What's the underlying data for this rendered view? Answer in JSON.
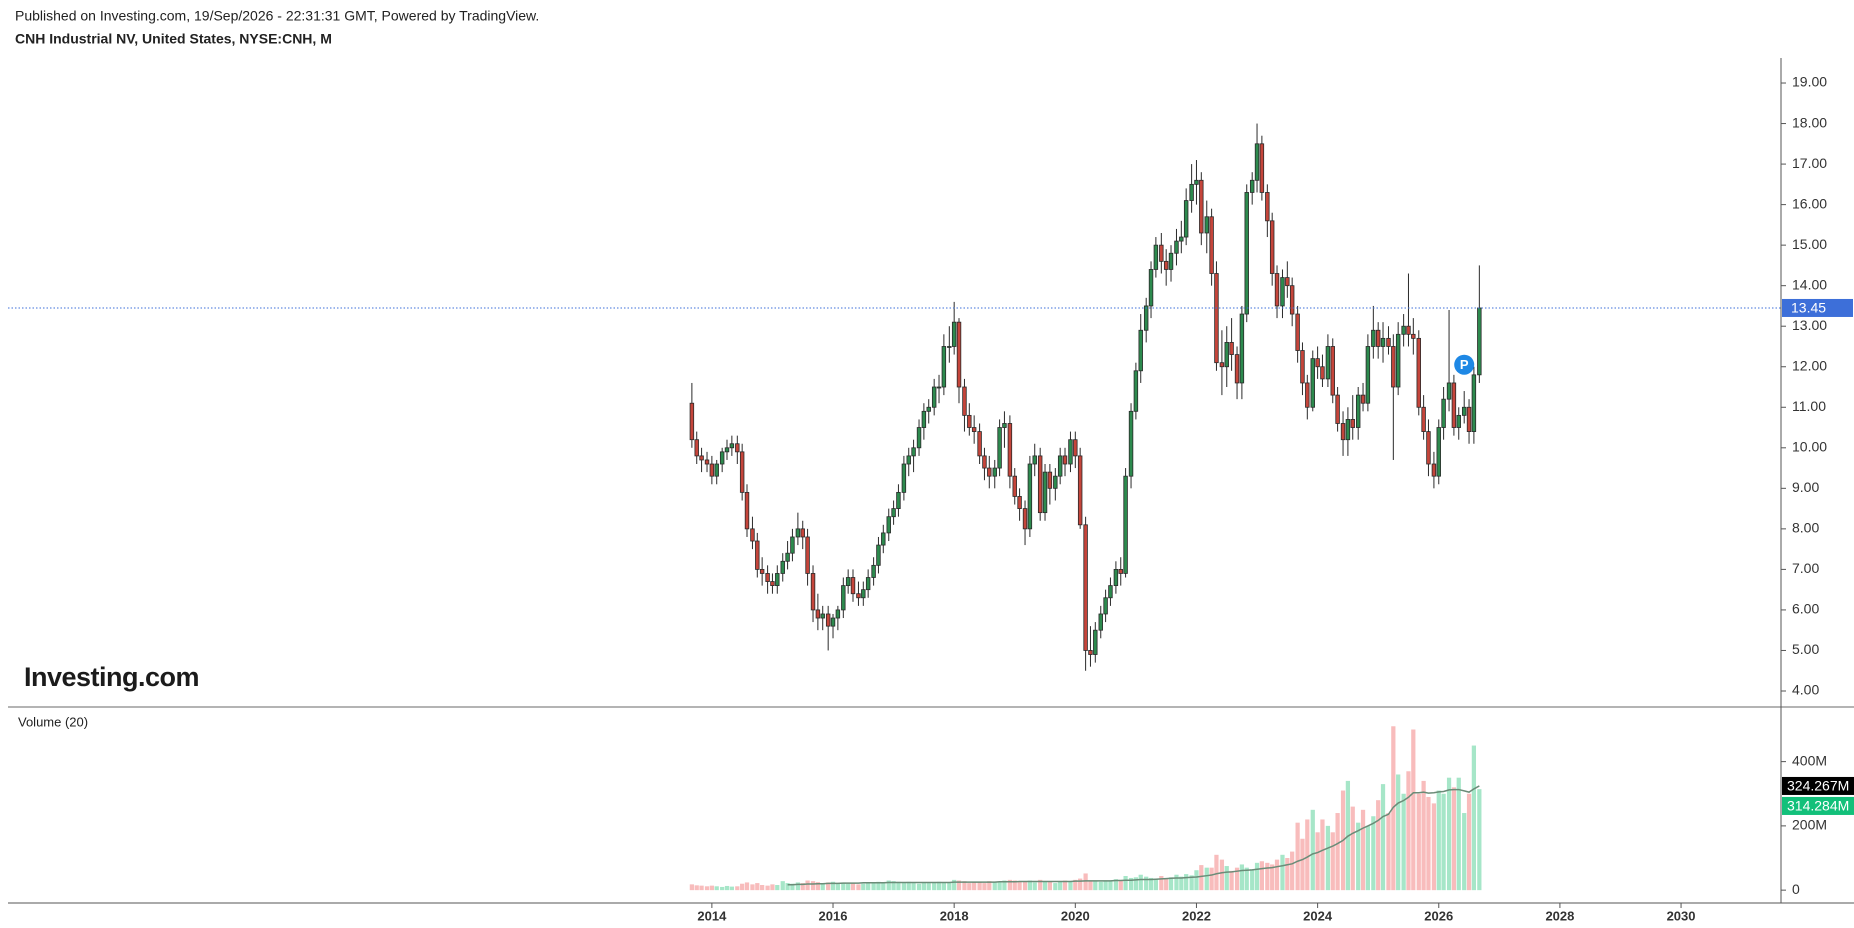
{
  "source": "Published on Investing.com, 19/Sep/2026 - 22:31:31 GMT, Powered by TradingView.",
  "logo": "Investing.com",
  "chart_data": {
    "type": "candlestick",
    "title": "CNH Industrial NV, United States, NYSE:CNH, M",
    "up_color": "#2d8a4e",
    "down_color": "#c5453b",
    "last_price_color": "#3d6fd9",
    "x": [
      2013.67,
      2013.75,
      2013.83,
      2013.92,
      2014,
      2014.08,
      2014.17,
      2014.25,
      2014.33,
      2014.42,
      2014.5,
      2014.58,
      2014.67,
      2014.75,
      2014.83,
      2014.92,
      2015,
      2015.08,
      2015.17,
      2015.25,
      2015.33,
      2015.42,
      2015.5,
      2015.58,
      2015.67,
      2015.75,
      2015.83,
      2015.92,
      2016,
      2016.08,
      2016.17,
      2016.25,
      2016.33,
      2016.42,
      2016.5,
      2016.58,
      2016.67,
      2016.75,
      2016.83,
      2016.92,
      2017,
      2017.08,
      2017.17,
      2017.25,
      2017.33,
      2017.42,
      2017.5,
      2017.58,
      2017.67,
      2017.75,
      2017.83,
      2017.92,
      2018,
      2018.08,
      2018.17,
      2018.25,
      2018.33,
      2018.42,
      2018.5,
      2018.58,
      2018.67,
      2018.75,
      2018.83,
      2018.92,
      2019,
      2019.08,
      2019.17,
      2019.25,
      2019.33,
      2019.42,
      2019.5,
      2019.58,
      2019.67,
      2019.75,
      2019.83,
      2019.92,
      2020,
      2020.08,
      2020.17,
      2020.25,
      2020.33,
      2020.42,
      2020.5,
      2020.58,
      2020.67,
      2020.75,
      2020.83,
      2020.92,
      2021,
      2021.08,
      2021.17,
      2021.25,
      2021.33,
      2021.42,
      2021.5,
      2021.58,
      2021.67,
      2021.75,
      2021.83,
      2021.92,
      2022,
      2022.08,
      2022.17,
      2022.25,
      2022.33,
      2022.42,
      2022.5,
      2022.58,
      2022.67,
      2022.75,
      2022.83,
      2022.92,
      2023,
      2023.08,
      2023.17,
      2023.25,
      2023.33,
      2023.42,
      2023.5,
      2023.58,
      2023.67,
      2023.75,
      2023.83,
      2023.92,
      2024,
      2024.08,
      2024.17,
      2024.25,
      2024.33,
      2024.42,
      2024.5,
      2024.58,
      2024.67,
      2024.75,
      2024.83,
      2024.92,
      2025,
      2025.08,
      2025.17,
      2025.25,
      2025.33,
      2025.42,
      2025.5,
      2025.58,
      2025.67,
      2025.75,
      2025.83,
      2025.92,
      2026,
      2026.08,
      2026.17,
      2026.25,
      2026.33,
      2026.42,
      2026.5,
      2026.58,
      2026.67
    ],
    "open": [
      11.1,
      10.2,
      9.8,
      9.7,
      9.6,
      9.3,
      9.6,
      9.9,
      10.0,
      10.1,
      9.9,
      8.9,
      8.0,
      7.7,
      7.0,
      6.9,
      6.7,
      6.6,
      6.9,
      7.2,
      7.4,
      7.8,
      8.0,
      7.8,
      6.9,
      6.0,
      5.8,
      5.9,
      5.6,
      5.8,
      6.0,
      6.6,
      6.8,
      6.4,
      6.3,
      6.5,
      6.8,
      7.1,
      7.6,
      7.9,
      8.3,
      8.5,
      8.9,
      9.6,
      9.8,
      10.0,
      10.5,
      10.9,
      11.0,
      11.5,
      11.5,
      12.5,
      12.5,
      13.1,
      11.5,
      10.8,
      10.5,
      10.4,
      9.8,
      9.5,
      9.3,
      9.5,
      10.5,
      10.6,
      9.3,
      8.8,
      8.5,
      8.0,
      9.6,
      9.8,
      8.4,
      9.4,
      9.0,
      9.3,
      9.8,
      9.6,
      10.2,
      9.8,
      8.1,
      5.0,
      4.9,
      5.5,
      5.9,
      6.3,
      6.6,
      7.0,
      6.9,
      9.3,
      10.9,
      11.9,
      12.9,
      13.5,
      14.4,
      15.0,
      14.6,
      14.4,
      14.8,
      15.1,
      15.2,
      16.1,
      16.5,
      16.6,
      15.3,
      15.7,
      14.3,
      12.1,
      12.0,
      12.6,
      12.3,
      11.6,
      13.3,
      16.3,
      16.6,
      17.5,
      16.3,
      15.6,
      14.3,
      13.5,
      14.2,
      14.0,
      13.3,
      12.4,
      11.6,
      11.0,
      12.2,
      12.0,
      11.7,
      12.5,
      11.3,
      10.6,
      10.2,
      10.7,
      10.5,
      11.3,
      11.1,
      12.5,
      12.9,
      12.5,
      12.7,
      12.5,
      11.5,
      12.8,
      13.0,
      12.8,
      12.7,
      11.0,
      10.4,
      9.6,
      9.3,
      10.5,
      11.2,
      11.6,
      10.5,
      10.8,
      11.0,
      10.4,
      11.8
    ],
    "high": [
      11.6,
      10.4,
      10.0,
      9.9,
      9.8,
      9.7,
      10.0,
      10.2,
      10.3,
      10.3,
      10.1,
      9.1,
      8.3,
      7.9,
      7.3,
      7.1,
      6.9,
      7.1,
      7.4,
      7.7,
      8.0,
      8.4,
      8.2,
      8.0,
      7.1,
      6.4,
      6.1,
      6.1,
      5.9,
      6.1,
      6.8,
      7.0,
      7.0,
      6.7,
      6.7,
      7.0,
      7.3,
      7.8,
      8.1,
      8.5,
      8.7,
      9.1,
      9.8,
      10.0,
      10.2,
      10.7,
      11.1,
      11.2,
      11.7,
      11.8,
      12.8,
      13.0,
      13.6,
      13.2,
      11.7,
      11.1,
      10.8,
      10.6,
      10.0,
      9.8,
      9.7,
      10.7,
      10.9,
      10.8,
      9.5,
      9.0,
      8.7,
      9.8,
      10.1,
      10.0,
      9.6,
      9.6,
      9.5,
      10.0,
      10.0,
      10.4,
      10.4,
      10.0,
      8.3,
      5.6,
      5.7,
      6.1,
      6.5,
      6.8,
      7.2,
      7.3,
      9.5,
      11.1,
      12.1,
      13.3,
      13.7,
      14.6,
      15.2,
      15.3,
      14.9,
      15.0,
      15.4,
      15.6,
      16.4,
      17.0,
      17.1,
      16.8,
      16.1,
      15.9,
      14.6,
      12.9,
      13.0,
      13.2,
      12.5,
      13.5,
      16.5,
      16.8,
      18.0,
      17.7,
      16.5,
      15.8,
      14.5,
      14.4,
      14.6,
      14.2,
      13.5,
      12.6,
      11.8,
      12.4,
      12.5,
      12.3,
      12.8,
      12.7,
      11.5,
      10.9,
      11.0,
      11.3,
      11.5,
      11.6,
      12.8,
      13.5,
      13.1,
      13.1,
      13.0,
      12.8,
      13.1,
      13.3,
      14.3,
      13.2,
      12.9,
      11.3,
      10.7,
      9.9,
      10.7,
      11.5,
      13.4,
      11.8,
      11.0,
      11.4,
      11.2,
      12.0,
      14.5
    ],
    "low": [
      10.0,
      9.6,
      9.4,
      9.4,
      9.1,
      9.1,
      9.4,
      9.7,
      9.8,
      9.6,
      8.7,
      7.8,
      7.5,
      6.8,
      6.6,
      6.4,
      6.4,
      6.4,
      6.7,
      7.0,
      7.2,
      7.6,
      7.5,
      6.6,
      5.7,
      5.5,
      5.5,
      5.0,
      5.3,
      5.5,
      5.8,
      6.4,
      6.2,
      6.1,
      6.1,
      6.3,
      6.6,
      6.9,
      7.4,
      7.7,
      8.1,
      8.3,
      8.7,
      9.3,
      9.4,
      9.8,
      10.2,
      10.6,
      10.8,
      11.1,
      11.3,
      12.1,
      12.3,
      11.1,
      10.4,
      10.3,
      10.1,
      9.6,
      9.2,
      9.0,
      9.0,
      9.3,
      10.0,
      9.0,
      8.6,
      8.2,
      7.6,
      7.8,
      9.3,
      8.2,
      8.2,
      8.6,
      8.7,
      9.1,
      9.3,
      9.4,
      9.5,
      8.0,
      4.5,
      4.6,
      4.7,
      5.3,
      5.7,
      6.1,
      6.4,
      6.6,
      6.8,
      9.0,
      10.7,
      11.6,
      12.6,
      13.2,
      14.2,
      14.3,
      14.0,
      14.1,
      14.5,
      14.8,
      15.0,
      15.8,
      16.0,
      15.0,
      14.8,
      14.0,
      11.9,
      11.3,
      11.5,
      11.9,
      11.2,
      11.2,
      13.1,
      16.0,
      16.3,
      16.1,
      15.2,
      14.0,
      13.2,
      13.2,
      13.7,
      13.0,
      12.1,
      11.3,
      10.7,
      10.9,
      11.7,
      11.5,
      11.5,
      11.1,
      10.4,
      9.8,
      9.8,
      10.2,
      10.2,
      10.9,
      10.9,
      12.2,
      12.2,
      12.1,
      12.3,
      9.7,
      11.3,
      12.5,
      12.5,
      12.3,
      10.8,
      10.2,
      9.3,
      9.0,
      9.1,
      10.2,
      10.9,
      10.3,
      10.2,
      10.6,
      10.1,
      10.1,
      11.6
    ],
    "close": [
      10.2,
      9.8,
      9.7,
      9.6,
      9.3,
      9.6,
      9.9,
      10.0,
      10.1,
      9.9,
      8.9,
      8.0,
      7.7,
      7.0,
      6.9,
      6.7,
      6.6,
      6.9,
      7.2,
      7.4,
      7.8,
      8.0,
      7.8,
      6.9,
      6.0,
      5.8,
      5.9,
      5.6,
      5.8,
      6.0,
      6.6,
      6.8,
      6.4,
      6.3,
      6.5,
      6.8,
      7.1,
      7.6,
      7.9,
      8.3,
      8.5,
      8.9,
      9.6,
      9.8,
      10.0,
      10.5,
      10.9,
      11.0,
      11.5,
      11.5,
      12.5,
      12.5,
      13.1,
      11.5,
      10.8,
      10.5,
      10.4,
      9.8,
      9.5,
      9.3,
      9.5,
      10.5,
      10.6,
      9.3,
      8.8,
      8.5,
      8.0,
      9.6,
      9.8,
      8.4,
      9.4,
      9.0,
      9.3,
      9.8,
      9.6,
      10.2,
      9.8,
      8.1,
      5.0,
      4.9,
      5.5,
      5.9,
      6.3,
      6.6,
      7.0,
      6.9,
      9.3,
      10.9,
      11.9,
      12.9,
      13.5,
      14.4,
      15.0,
      14.6,
      14.4,
      14.8,
      15.1,
      15.2,
      16.1,
      16.5,
      16.6,
      15.3,
      15.7,
      14.3,
      12.1,
      12.0,
      12.6,
      12.3,
      11.6,
      13.3,
      16.3,
      16.6,
      17.5,
      16.3,
      15.6,
      14.3,
      13.5,
      14.2,
      14.0,
      13.3,
      12.4,
      11.6,
      11.0,
      12.2,
      12.0,
      11.7,
      12.5,
      11.3,
      10.6,
      10.2,
      10.7,
      10.5,
      11.3,
      11.1,
      12.5,
      12.9,
      12.5,
      12.7,
      12.5,
      11.5,
      12.8,
      13.0,
      12.8,
      12.7,
      11.0,
      10.4,
      9.6,
      9.3,
      10.5,
      11.2,
      11.6,
      10.5,
      10.8,
      11.0,
      10.4,
      11.8,
      13.45
    ],
    "xlim": [
      2002.38,
      2031.65
    ],
    "xticks": [
      2014,
      2016,
      2018,
      2020,
      2022,
      2024,
      2026,
      2028,
      2030
    ],
    "ylim": [
      3.6,
      19.6
    ],
    "yticks": [
      {
        "value": 4,
        "label": "4.00"
      },
      {
        "value": 5,
        "label": "5.00"
      },
      {
        "value": 6,
        "label": "6.00"
      },
      {
        "value": 7,
        "label": "7.00"
      },
      {
        "value": 8,
        "label": "8.00"
      },
      {
        "value": 9,
        "label": "9.00"
      },
      {
        "value": 10,
        "label": "10.00"
      },
      {
        "value": 11,
        "label": "11.00"
      },
      {
        "value": 12,
        "label": "12.00"
      },
      {
        "value": 13,
        "label": "13.00"
      },
      {
        "value": 14,
        "label": "14.00"
      },
      {
        "value": 15,
        "label": "15.00"
      },
      {
        "value": 16,
        "label": "16.00"
      },
      {
        "value": 17,
        "label": "17.00"
      },
      {
        "value": 18,
        "label": "18.00"
      },
      {
        "value": 19,
        "label": "19.00"
      }
    ],
    "annotation": {
      "text": "P",
      "x": 2026.42,
      "y": 12.05,
      "color": "#1e88e5"
    },
    "volume": {
      "title": "Volume (20)",
      "up_color": "#a6e6c8",
      "down_color": "#f8bcbc",
      "label_color": "#12c07a",
      "values": [
        18,
        15,
        14,
        12,
        14,
        12,
        10,
        13,
        11,
        12,
        20,
        24,
        18,
        22,
        16,
        14,
        18,
        16,
        28,
        22,
        20,
        24,
        22,
        30,
        28,
        25,
        22,
        24,
        26,
        22,
        24,
        20,
        22,
        18,
        20,
        22,
        24,
        26,
        22,
        30,
        28,
        26,
        24,
        26,
        22,
        20,
        24,
        22,
        24,
        26,
        25,
        24,
        32,
        30,
        28,
        22,
        24,
        26,
        22,
        28,
        24,
        26,
        30,
        32,
        30,
        26,
        28,
        30,
        24,
        32,
        28,
        26,
        22,
        26,
        30,
        28,
        32,
        36,
        52,
        30,
        28,
        26,
        30,
        28,
        34,
        30,
        44,
        38,
        40,
        48,
        42,
        38,
        36,
        44,
        36,
        40,
        48,
        42,
        50,
        46,
        62,
        78,
        70,
        70,
        110,
        95,
        75,
        60,
        70,
        80,
        70,
        65,
        85,
        90,
        85,
        80,
        95,
        110,
        100,
        120,
        210,
        160,
        220,
        250,
        180,
        220,
        200,
        180,
        240,
        310,
        340,
        260,
        210,
        250,
        200,
        230,
        280,
        330,
        240,
        510,
        360,
        300,
        370,
        500,
        300,
        340,
        290,
        270,
        310,
        300,
        350,
        320,
        350,
        240,
        300,
        450,
        314.284
      ],
      "last_value_label": "314.284M",
      "ma": {
        "color": "#6b8c78",
        "label_color": "#000000",
        "values": [
          null,
          null,
          null,
          null,
          null,
          null,
          null,
          null,
          null,
          null,
          null,
          null,
          null,
          null,
          null,
          null,
          null,
          null,
          null,
          17,
          17,
          18,
          18,
          19,
          19,
          20,
          20,
          21,
          21,
          21,
          22,
          22,
          22,
          22,
          23,
          23,
          23,
          23,
          23,
          24,
          24,
          24,
          24,
          24,
          24,
          24,
          24,
          24,
          24,
          24,
          24,
          24,
          25,
          25,
          25,
          25,
          25,
          25,
          25,
          25,
          25,
          26,
          26,
          26,
          26,
          27,
          27,
          27,
          27,
          27,
          27,
          27,
          27,
          27,
          27,
          27,
          28,
          28,
          29,
          29,
          29,
          29,
          29,
          29,
          30,
          30,
          31,
          31,
          32,
          33,
          33,
          33,
          34,
          35,
          36,
          37,
          38,
          38,
          39,
          40,
          41,
          43,
          45,
          47,
          51,
          54,
          56,
          57,
          59,
          61,
          62,
          63,
          65,
          67,
          69,
          70,
          73,
          76,
          79,
          82,
          90,
          95,
          103,
          113,
          117,
          124,
          131,
          137,
          145,
          155,
          168,
          177,
          185,
          193,
          200,
          208,
          217,
          229,
          236,
          258,
          271,
          279,
          289,
          303,
          303,
          305,
          302,
          303,
          306,
          307,
          312,
          313,
          313,
          309,
          305,
          315,
          324.267
        ],
        "last_value_label": "324.267M"
      },
      "ylim": [
        -40,
        570
      ],
      "yticks": [
        0,
        {
          "value": 200,
          "label": "200M"
        },
        {
          "value": 400,
          "label": "400M"
        }
      ]
    }
  }
}
